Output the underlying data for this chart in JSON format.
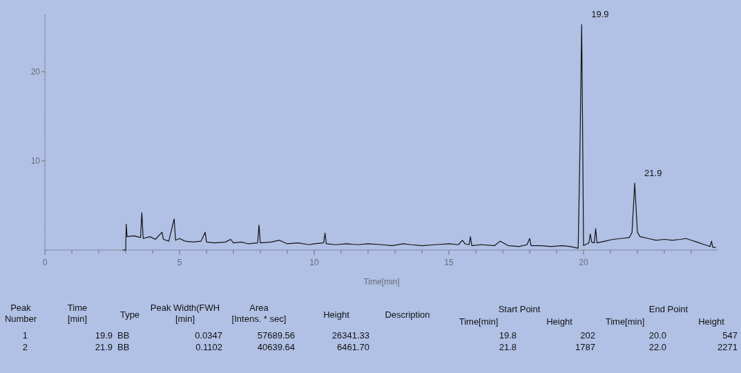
{
  "chart_data": [
    {
      "type": "line",
      "xlabel": "Time[min]",
      "xlim": [
        0,
        25
      ],
      "ylim": [
        0,
        26.5
      ],
      "xticks": [
        0,
        {
          "value": 1,
          "label": null
        },
        {
          "value": 2,
          "label": null
        },
        {
          "value": 3,
          "label": null
        },
        {
          "value": 4,
          "label": null
        },
        5,
        {
          "value": 6,
          "label": null
        },
        {
          "value": 7,
          "label": null
        },
        {
          "value": 8,
          "label": null
        },
        {
          "value": 9,
          "label": null
        },
        10,
        {
          "value": 11,
          "label": null
        },
        {
          "value": 12,
          "label": null
        },
        {
          "value": 13,
          "label": null
        },
        {
          "value": 14,
          "label": null
        },
        15,
        {
          "value": 16,
          "label": null
        },
        {
          "value": 17,
          "label": null
        },
        {
          "value": 18,
          "label": null
        },
        {
          "value": 19,
          "label": null
        },
        20,
        {
          "value": 21,
          "label": null
        },
        {
          "value": 22,
          "label": null
        },
        {
          "value": 23,
          "label": null
        },
        {
          "value": 24,
          "label": null
        }
      ],
      "yticks": [
        10,
        20
      ],
      "annotations": [
        {
          "text": "19.9",
          "x": 19.93,
          "y": 25.3
        },
        {
          "text": "21.9",
          "x": 21.9,
          "y": 7.5
        }
      ],
      "series": [
        {
          "color": "#111111",
          "x": [
            2.9,
            3.0,
            3.02,
            3.05,
            3.3,
            3.55,
            3.6,
            3.65,
            3.9,
            4.1,
            4.35,
            4.4,
            4.6,
            4.8,
            4.85,
            5.0,
            5.2,
            5.5,
            5.8,
            5.95,
            6.0,
            6.3,
            6.7,
            6.9,
            7.0,
            7.3,
            7.55,
            7.9,
            7.95,
            8.0,
            8.4,
            8.7,
            9.0,
            9.4,
            9.8,
            10.0,
            10.35,
            10.4,
            10.45,
            10.8,
            11.2,
            11.6,
            12.0,
            12.5,
            12.9,
            13.3,
            13.6,
            14.0,
            14.5,
            15.0,
            15.35,
            15.5,
            15.6,
            15.75,
            15.8,
            15.85,
            16.2,
            16.7,
            16.9,
            17.2,
            17.6,
            17.9,
            18.0,
            18.05,
            18.4,
            18.8,
            19.2,
            19.5,
            19.8,
            19.87,
            19.93,
            19.97,
            20.0,
            20.2,
            20.25,
            20.3,
            20.4,
            20.45,
            20.5,
            20.8,
            21.1,
            21.4,
            21.7,
            21.8,
            21.9,
            22.0,
            22.1,
            22.4,
            22.7,
            23.0,
            23.3,
            23.6,
            23.8,
            24.0,
            24.2,
            24.5,
            24.7,
            24.75,
            24.8,
            24.9
          ],
          "values": [
            0,
            0,
            2.9,
            1.5,
            1.6,
            1.4,
            4.2,
            1.3,
            1.5,
            1.2,
            2.0,
            1.2,
            1.0,
            3.5,
            1.1,
            1.3,
            1.0,
            0.9,
            1.0,
            2.0,
            0.9,
            0.8,
            0.9,
            1.2,
            0.8,
            0.9,
            0.7,
            0.8,
            2.8,
            0.8,
            0.9,
            1.1,
            0.7,
            0.8,
            0.6,
            0.7,
            0.8,
            1.9,
            0.7,
            0.6,
            0.7,
            0.6,
            0.7,
            0.6,
            0.5,
            0.7,
            0.6,
            0.5,
            0.6,
            0.7,
            0.6,
            1.1,
            0.7,
            0.6,
            1.5,
            0.5,
            0.6,
            0.5,
            1.0,
            0.5,
            0.4,
            0.6,
            1.3,
            0.5,
            0.5,
            0.4,
            0.5,
            0.4,
            0.2,
            12,
            25.3,
            12,
            0.5,
            0.8,
            1.8,
            0.9,
            0.8,
            2.4,
            0.8,
            1.0,
            1.2,
            1.3,
            1.4,
            2.0,
            7.5,
            2.0,
            1.5,
            1.3,
            1.1,
            1.2,
            1.1,
            1.2,
            1.3,
            1.1,
            0.9,
            0.6,
            0.4,
            1.0,
            0.3,
            0.3
          ]
        }
      ]
    },
    {
      "type": "other",
      "annotations": [
        "Peak Number",
        "Time [min]",
        "Type",
        "Peak Width(FWH [min]",
        "Area [Intens. * sec]",
        "Height",
        "Description",
        "Time[min]",
        "Height",
        "Time[min]",
        "Height",
        "1",
        "19.9",
        "BB",
        "0.0347",
        "57689.56",
        "26341.33",
        "19.8",
        "202",
        "20.0",
        "547",
        "2",
        "21.9",
        "BB",
        "0.1102",
        "40639.64",
        "6461.70",
        "21.8",
        "1787",
        "22.0",
        "2271",
        "Start Point",
        "End Point"
      ]
    }
  ]
}
